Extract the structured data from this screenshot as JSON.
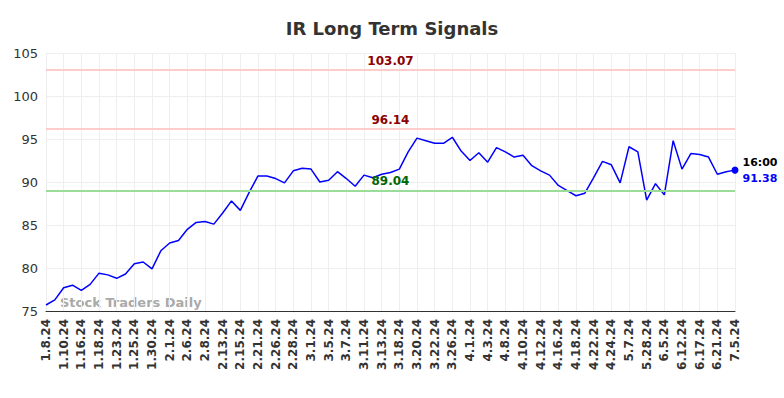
{
  "chart_data": {
    "type": "line",
    "title": "IR Long Term Signals",
    "watermark": "Stock Traders Daily",
    "color": "#0000ff",
    "grid": true,
    "categories": [
      "1.8.24",
      null,
      "1.10.24",
      null,
      "1.16.24",
      null,
      "1.18.24",
      null,
      "1.23.24",
      null,
      "1.25.24",
      null,
      "1.30.24",
      null,
      "2.1.24",
      null,
      "2.6.24",
      null,
      "2.8.24",
      null,
      "2.13.24",
      null,
      "2.15.24",
      null,
      "2.21.24",
      null,
      "2.26.24",
      null,
      "2.28.24",
      null,
      "3.1.24",
      null,
      "3.5.24",
      null,
      "3.7.24",
      null,
      "3.11.24",
      null,
      "3.13.24",
      null,
      "3.18.24",
      null,
      "3.20.24",
      null,
      "3.22.24",
      null,
      "3.26.24",
      null,
      "4.1.24",
      null,
      "4.3.24",
      null,
      "4.8.24",
      null,
      "4.10.24",
      null,
      "4.12.24",
      null,
      "4.16.24",
      null,
      "4.18.24",
      null,
      "4.22.24",
      null,
      "4.24.24",
      null,
      "5.7.24",
      null,
      "5.28.24",
      null,
      "6.5.24",
      null,
      "6.12.24",
      null,
      "6.17.24",
      null,
      "6.21.24",
      null,
      "7.5.24"
    ],
    "values": [
      75.7,
      76.3,
      77.7,
      78.0,
      77.4,
      78.1,
      79.4,
      79.2,
      78.8,
      79.3,
      80.5,
      80.7,
      79.9,
      82.0,
      82.9,
      83.2,
      84.5,
      85.3,
      85.4,
      85.1,
      86.4,
      87.8,
      86.7,
      88.8,
      90.7,
      90.7,
      90.4,
      89.9,
      91.3,
      91.6,
      91.5,
      90.0,
      90.2,
      91.2,
      90.4,
      89.5,
      90.8,
      90.5,
      90.9,
      91.1,
      91.5,
      93.5,
      95.1,
      94.8,
      94.5,
      94.5,
      95.2,
      93.6,
      92.5,
      93.4,
      92.3,
      94.0,
      93.5,
      92.9,
      93.1,
      91.9,
      91.3,
      90.8,
      89.6,
      89.0,
      88.4,
      88.7,
      90.5,
      92.4,
      92.0,
      89.9,
      94.1,
      93.5,
      87.9,
      89.8,
      88.5,
      94.8,
      91.5,
      93.3,
      93.2,
      92.9,
      90.9,
      91.2,
      91.38
    ],
    "last_point_label": "16:00",
    "levels": [
      {
        "value": 103.07,
        "color": "#ffcccc"
      },
      {
        "value": 96.14,
        "color": "#ffcccc"
      },
      {
        "value": 89.04,
        "color": "#99dd99"
      }
    ],
    "ylim": [
      75,
      105
    ],
    "yticks": [
      75,
      80,
      85,
      90,
      95,
      100,
      105
    ]
  }
}
